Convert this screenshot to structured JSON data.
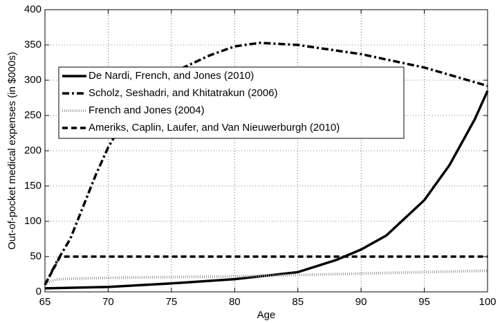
{
  "chart_data": {
    "type": "line",
    "xlabel": "Age",
    "ylabel": "Out-of-pocket medical expenses (in $000s)",
    "xlim": [
      65,
      100
    ],
    "xticks": [
      65,
      70,
      75,
      80,
      85,
      90,
      95,
      100
    ],
    "ylim": [
      0,
      400
    ],
    "yticks": [
      0,
      50,
      100,
      150,
      200,
      250,
      300,
      350,
      400
    ],
    "grid": true,
    "legend": "upper left",
    "series": [
      {
        "name": "De Nardi, French, and Jones (2010)",
        "color": "#000000",
        "style": "solid",
        "x": [
          65,
          70,
          75,
          80,
          85,
          88,
          90,
          92,
          95,
          97,
          99,
          100
        ],
        "values": [
          5,
          7,
          12,
          18,
          28,
          45,
          60,
          80,
          130,
          180,
          245,
          285
        ]
      },
      {
        "name": "Scholz, Seshadri, and Khitatrakun (2006)",
        "color": "#000000",
        "style": "dashdot",
        "x": [
          65,
          66,
          67,
          68,
          69,
          70,
          71,
          72,
          75,
          78,
          80,
          82,
          85,
          90,
          95,
          100
        ],
        "values": [
          10,
          45,
          75,
          120,
          165,
          205,
          235,
          265,
          310,
          335,
          348,
          353,
          350,
          337,
          318,
          292
        ]
      },
      {
        "name": "French and Jones (2004)",
        "color": "#999999",
        "style": "dotted",
        "x": [
          65,
          66,
          70,
          80,
          90,
          100
        ],
        "values": [
          12,
          18,
          20,
          22,
          26,
          30
        ]
      },
      {
        "name": "Ameriks, Caplin, Laufer, and Van Nieuwerburgh (2010)",
        "color": "#000000",
        "style": "dashed",
        "x": [
          65,
          66.2,
          100
        ],
        "values": [
          10,
          50,
          50
        ]
      }
    ]
  }
}
